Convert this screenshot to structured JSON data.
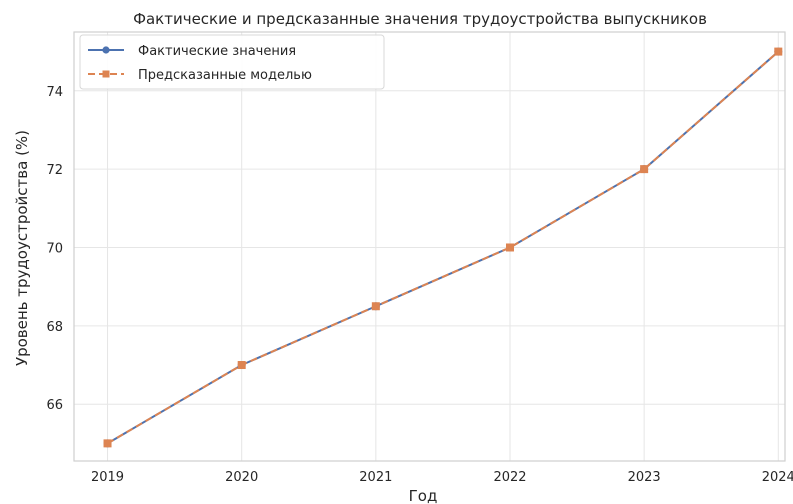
{
  "chart_data": {
    "type": "line",
    "title": "Фактические и предсказанные значения трудоустройства выпускников",
    "xlabel": "Год",
    "ylabel": "Уровень трудоустройства (%)",
    "x": [
      2019,
      2020,
      2021,
      2022,
      2023,
      2024
    ],
    "x_tick_labels": [
      "2019",
      "2020",
      "2021",
      "2022",
      "2023",
      "2024"
    ],
    "y_ticks": [
      66,
      68,
      70,
      72,
      74
    ],
    "y_tick_labels": [
      "66",
      "68",
      "70",
      "72",
      "74"
    ],
    "xlim": [
      2018.75,
      2024.05
    ],
    "ylim": [
      64.55,
      75.5
    ],
    "grid": true,
    "legend_position": "top-left",
    "series": [
      {
        "name": "Фактические значения",
        "values": [
          65,
          67,
          68.5,
          70,
          72,
          75
        ],
        "color": "#4c72b0",
        "marker": "circle",
        "line_style": "solid"
      },
      {
        "name": "Предсказанные моделью",
        "values": [
          65,
          67,
          68.5,
          70,
          72,
          75
        ],
        "color": "#dd8452",
        "marker": "square",
        "line_style": "dashed"
      }
    ]
  }
}
